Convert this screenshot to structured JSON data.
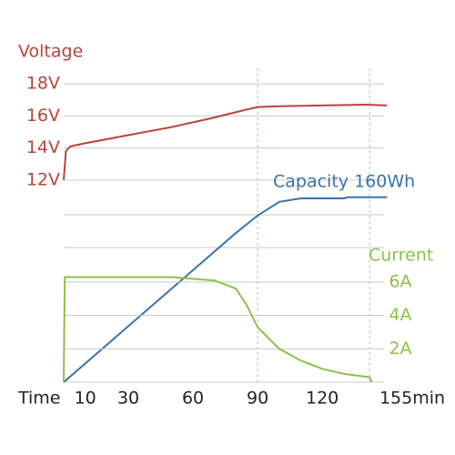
{
  "chart_data": {
    "type": "line",
    "x_label": "Time",
    "xlim": [
      0,
      155
    ],
    "xticks": [
      10,
      30,
      60,
      90,
      120,
      {
        "value": 155,
        "label": "155min"
      }
    ],
    "vlines": [
      90,
      142
    ],
    "series": [
      {
        "name": "Voltage",
        "color": "#b5443c",
        "x": [
          0,
          1,
          3,
          10,
          30,
          50,
          70,
          85,
          90,
          100,
          120,
          140,
          150
        ],
        "values": [
          12,
          13.8,
          14.1,
          14.3,
          14.8,
          15.3,
          15.9,
          16.4,
          16.55,
          16.6,
          16.65,
          16.7,
          16.65
        ],
        "ylim": [
          12,
          18
        ],
        "yticks": [
          {
            "value": 12,
            "label": "12V"
          },
          {
            "value": 14,
            "label": "14V"
          },
          {
            "value": 16,
            "label": "16V"
          },
          {
            "value": 18,
            "label": "18V"
          }
        ]
      },
      {
        "name": "Capacity 160Wh",
        "color": "#3a73aa",
        "x": [
          0,
          80,
          90,
          100,
          110,
          130,
          132,
          150
        ],
        "values": [
          0,
          130,
          145,
          157,
          160,
          160,
          161,
          161
        ],
        "ylim": [
          0,
          160
        ]
      },
      {
        "name": "Current",
        "color": "#8cc04a",
        "x": [
          0,
          0.5,
          50,
          70,
          80,
          85,
          90,
          100,
          110,
          120,
          130,
          142,
          143
        ],
        "values": [
          0,
          6.3,
          6.3,
          6.1,
          5.6,
          4.6,
          3.3,
          2.0,
          1.3,
          0.8,
          0.5,
          0.3,
          0
        ],
        "ylim": [
          0,
          6
        ],
        "yticks": [
          {
            "value": 2,
            "label": "2A"
          },
          {
            "value": 4,
            "label": "4A"
          },
          {
            "value": 6,
            "label": "6A"
          }
        ]
      }
    ]
  }
}
